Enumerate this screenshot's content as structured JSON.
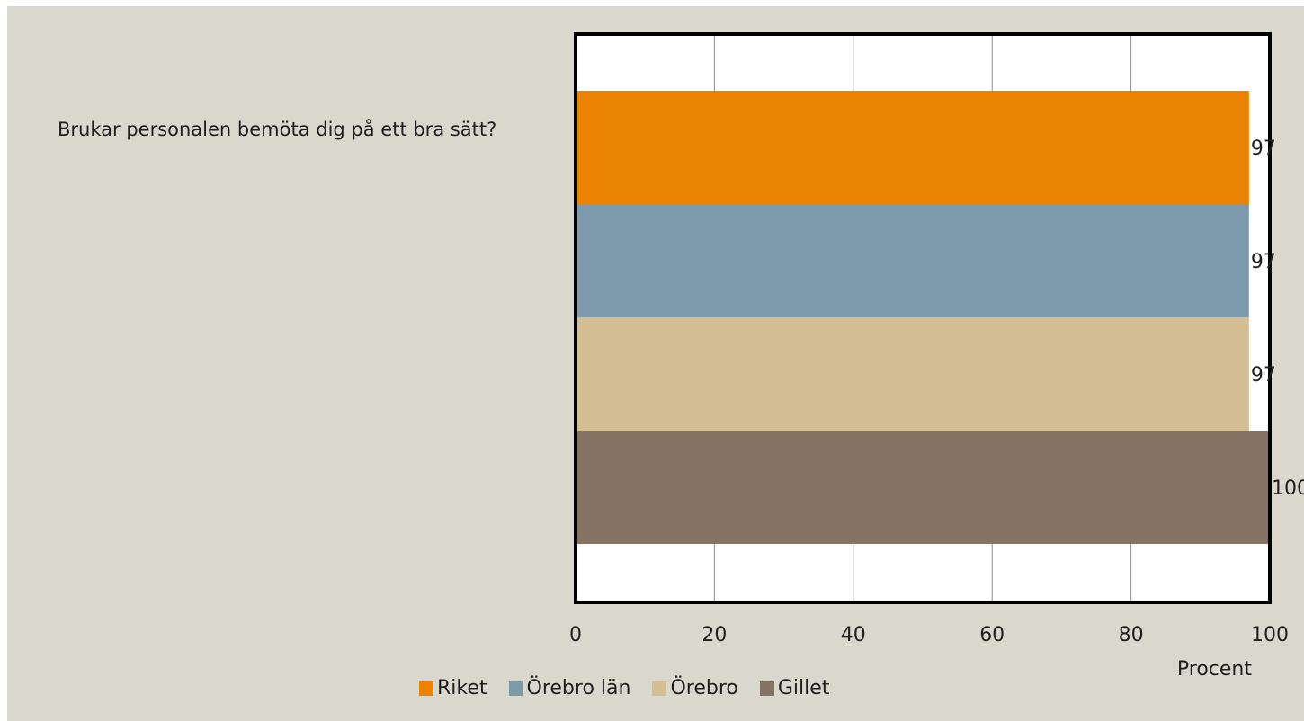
{
  "question": "Brukar personalen bemöta dig på ett bra sätt?",
  "chart_data": {
    "type": "bar",
    "orientation": "horizontal",
    "xlabel": "Procent",
    "xlim": [
      0,
      100
    ],
    "xticks": [
      0,
      20,
      40,
      60,
      80,
      100
    ],
    "grid": true,
    "legend_position": "bottom",
    "series": [
      {
        "name": "Riket",
        "value": 97,
        "color": "#e98300"
      },
      {
        "name": "Örebro län",
        "value": 97,
        "color": "#7d9aad"
      },
      {
        "name": "Örebro",
        "value": 97,
        "color": "#d4be94"
      },
      {
        "name": "Gillet",
        "value": 100,
        "color": "#857464"
      }
    ]
  }
}
